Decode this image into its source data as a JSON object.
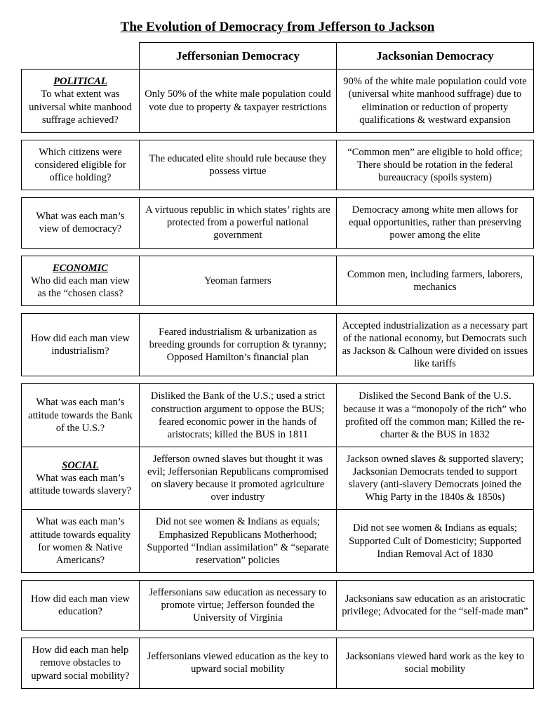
{
  "title": "The Evolution of Democracy from Jefferson to Jackson",
  "headers": {
    "col1": "",
    "col2": "Jeffersonian Democracy",
    "col3": "Jacksonian Democracy"
  },
  "sections": {
    "political": "POLITICAL",
    "economic": "ECONOMIC",
    "social": "SOCIAL"
  },
  "rows": [
    {
      "q": "To what extent was universal white manhood suffrage achieved?",
      "a1": "Only 50% of the white male population could vote due to property & taxpayer restrictions",
      "a2": "90% of the white male population could vote (universal white manhood suffrage) due to elimination or reduction of property qualifications & westward expansion"
    },
    {
      "q": "Which citizens were considered eligible for office holding?",
      "a1": "The educated elite should rule because they possess virtue",
      "a2": "“Common men” are eligible to hold office; There should be rotation in the federal bureaucracy (spoils system)"
    },
    {
      "q": "What was each man’s view of democracy?",
      "a1": "A virtuous republic in which states’ rights are protected from a powerful national government",
      "a2": "Democracy among white men allows for equal opportunities, rather than preserving power among the elite"
    },
    {
      "q": "Who did each man view as the “chosen class?",
      "a1": "Yeoman farmers",
      "a2": "Common men, including farmers, laborers, mechanics"
    },
    {
      "q": "How did each man view industrialism?",
      "a1": "Feared industrialism & urbanization as breeding grounds for corruption & tyranny; Opposed Hamilton’s financial plan",
      "a2": "Accepted industrialization as a necessary part of the national economy, but Democrats such as Jackson & Calhoun were divided on issues like tariffs"
    },
    {
      "q": "What was each man’s attitude towards the Bank of the U.S.?",
      "a1": "Disliked the Bank of the U.S.; used a strict construction argument to oppose the BUS; feared economic power in the hands of aristocrats; killed the BUS in 1811",
      "a2": "Disliked the Second Bank of the U.S. because it was a “monopoly of the rich” who profited off the common man; Killed the re-charter & the BUS in 1832"
    },
    {
      "q": "What was each man’s attitude towards slavery?",
      "a1": "Jefferson owned slaves but thought it was evil; Jeffersonian Republicans compromised on slavery because it promoted agriculture over industry",
      "a2": "Jackson owned slaves & supported slavery; Jacksonian Democrats tended to support slavery (anti-slavery Democrats joined the Whig Party in the 1840s & 1850s)"
    },
    {
      "q": "What was each man’s attitude towards equality for women & Native Americans?",
      "a1": "Did not see women & Indians as equals; Emphasized Republicans Motherhood; Supported “Indian assimilation” & “separate reservation” policies",
      "a2": "Did not see women & Indians as equals; Supported Cult of Domesticity; Supported Indian Removal Act of 1830"
    },
    {
      "q": "How did each man view education?",
      "a1": "Jeffersonians saw education as necessary to promote virtue; Jefferson founded the University of Virginia",
      "a2": "Jacksonians saw education as an aristocratic privilege; Advocated for the “self-made man”"
    },
    {
      "q": "How did each man help remove obstacles to upward social mobility?",
      "a1": "Jeffersonians viewed education as the key to upward social mobility",
      "a2": "Jacksonians viewed hard work as the key to social mobility"
    }
  ]
}
